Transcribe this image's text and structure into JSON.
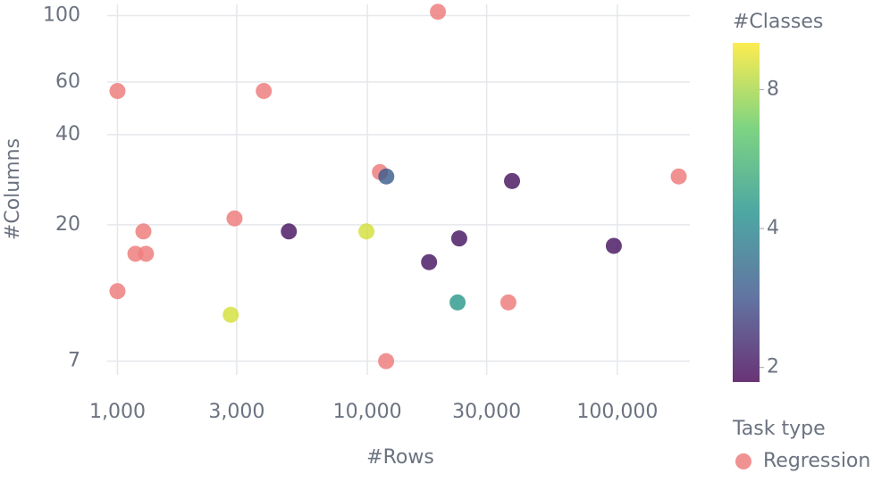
{
  "chart_data": {
    "type": "scatter",
    "x_label": "#Rows",
    "y_label": "#Columns",
    "xscale": "log",
    "yscale": "log",
    "grid": true,
    "xlim": [
      910,
      195000
    ],
    "ylim": [
      6.3,
      109
    ],
    "xticks": [
      {
        "value": 1000,
        "label": "1,000"
      },
      {
        "value": 3000,
        "label": "3,000"
      },
      {
        "value": 10000,
        "label": "10,000"
      },
      {
        "value": 30000,
        "label": "30,000"
      },
      {
        "value": 100000,
        "label": "100,000"
      }
    ],
    "yticks": [
      7,
      20,
      40,
      60,
      100
    ],
    "legend_title": "Task type",
    "series": [
      {
        "name": "Regression",
        "color": "#ef7f7f",
        "x": [
          19150,
          1000,
          3850,
          11220,
          176000,
          2940,
          1270,
          1180,
          1300,
          1000,
          36650,
          11880
        ],
        "y": [
          103,
          56,
          56,
          30,
          29,
          21,
          19,
          16,
          16,
          12,
          11,
          7
        ]
      }
    ],
    "classification": {
      "x": [
        11900,
        37900,
        4850,
        9910,
        23300,
        17650,
        96800,
        22950,
        2840
      ],
      "y": [
        29,
        28,
        19,
        19,
        18,
        15,
        17,
        11,
        10
      ],
      "classes": [
        3,
        2,
        2,
        9,
        2,
        2,
        2,
        4.5,
        9
      ]
    },
    "colorbar": {
      "title": "#Classes",
      "scale": "log",
      "clim": [
        1.86,
        10.1
      ],
      "ticks": [
        2,
        4,
        8
      ],
      "colorscale": [
        "#440154",
        "#3b528b",
        "#21918c",
        "#5ec962",
        "#fde725"
      ]
    }
  }
}
